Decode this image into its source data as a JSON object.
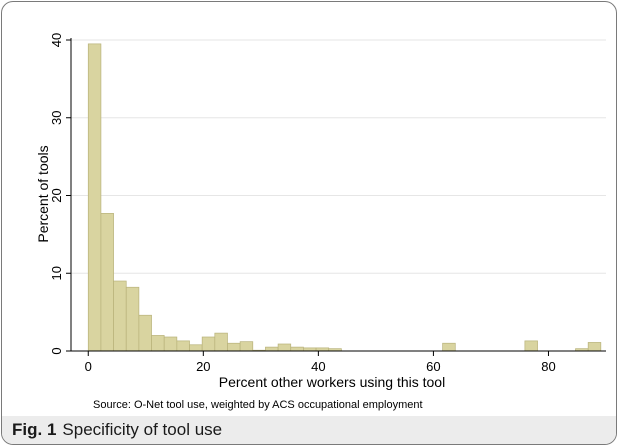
{
  "chart_data": {
    "type": "bar",
    "subtype": "histogram",
    "bin_width": 2.2,
    "x": [
      1.1,
      3.3,
      5.5,
      7.7,
      9.9,
      12.1,
      14.3,
      16.5,
      18.7,
      20.9,
      23.1,
      25.3,
      27.5,
      29.7,
      31.9,
      34.1,
      36.3,
      38.5,
      40.7,
      42.9,
      62.7,
      77.0,
      85.8,
      88.0
    ],
    "values": [
      39.5,
      17.7,
      9.0,
      8.2,
      4.6,
      2.0,
      1.8,
      1.3,
      0.8,
      1.8,
      2.3,
      1.0,
      1.2,
      0.1,
      0.5,
      0.9,
      0.5,
      0.4,
      0.4,
      0.3,
      1.0,
      1.3,
      0.3,
      1.1
    ],
    "xlabel": "Percent other workers using this tool",
    "ylabel": "Percent of tools",
    "xlim": [
      -3,
      90
    ],
    "ylim": [
      0,
      40
    ],
    "xticks": [
      0,
      20,
      40,
      60,
      80
    ],
    "yticks": [
      0,
      10,
      20,
      30,
      40
    ],
    "grid": true,
    "bar_color": "#d9d4a0",
    "bar_edge_color": "#b8b27a",
    "note": "Source: O-Net tool use, weighted by ACS occupational employment"
  },
  "caption": {
    "label": "Fig. 1",
    "text": "Specificity of tool use"
  }
}
